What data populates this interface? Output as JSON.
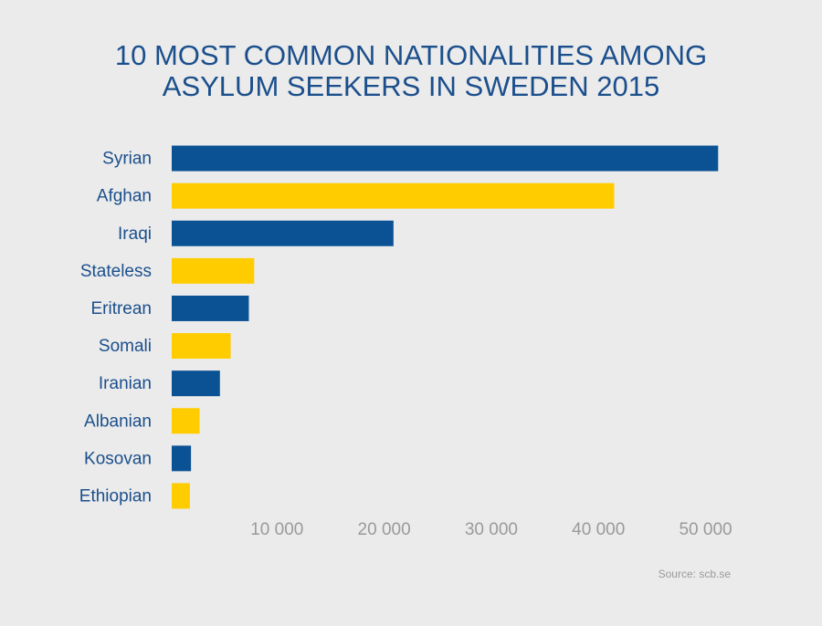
{
  "chart_data": {
    "type": "barh",
    "title": "10 MOST COMMON NATIONALITIES AMONG ASYLUM SEEKERS IN SWEDEN 2015",
    "categories": [
      "Syrian",
      "Afghan",
      "Iraqi",
      "Stateless",
      "Eritrean",
      "Somali",
      "Iranian",
      "Albanian",
      "Kosovan",
      "Ethiopian"
    ],
    "values": [
      51000,
      41300,
      20700,
      7700,
      7200,
      5500,
      4500,
      2600,
      1800,
      1700
    ],
    "colors": [
      "#0b5294",
      "#ffcc00",
      "#0b5294",
      "#ffcc00",
      "#0b5294",
      "#ffcc00",
      "#0b5294",
      "#ffcc00",
      "#0b5294",
      "#ffcc00"
    ],
    "xlim": [
      0,
      52000
    ],
    "xticks": [
      {
        "value": 10000,
        "label": "10 000"
      },
      {
        "value": 20000,
        "label": "20 000"
      },
      {
        "value": 30000,
        "label": "30 000"
      },
      {
        "value": 40000,
        "label": "40 000"
      },
      {
        "value": 50000,
        "label": "50 000"
      }
    ],
    "grid": false,
    "source": "Source: scb.se"
  }
}
